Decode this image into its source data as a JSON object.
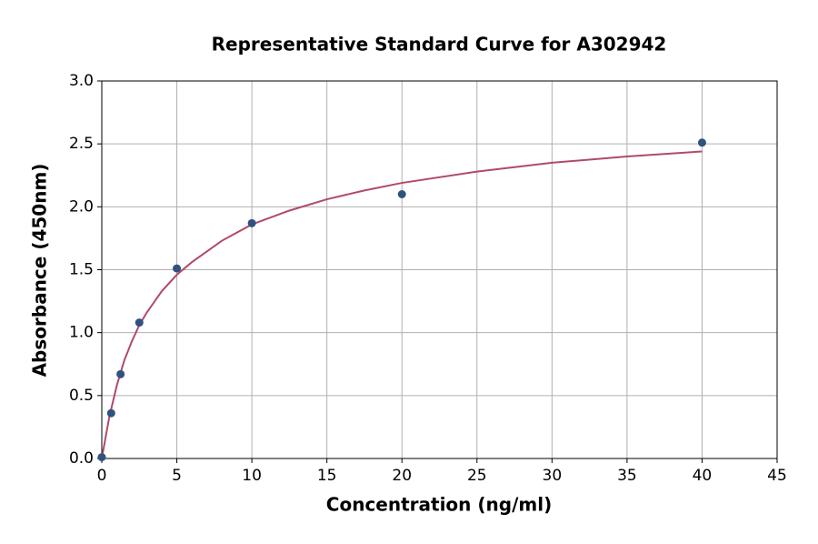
{
  "chart_data": {
    "type": "scatter",
    "title": "Representative Standard Curve for A302942",
    "x_label": "Concentration (ng/ml)",
    "y_label": "Absorbance (450nm)",
    "xlim": [
      0,
      45
    ],
    "ylim": [
      0,
      3
    ],
    "xticks": [
      0,
      5,
      10,
      15,
      20,
      25,
      30,
      35,
      40,
      45
    ],
    "yticks": [
      {
        "value": 0,
        "label": "0.0"
      },
      0.5,
      {
        "value": 1,
        "label": "1.0"
      },
      1.5,
      {
        "value": 2,
        "label": "2.0"
      },
      2.5,
      {
        "value": 3,
        "label": "3.0"
      }
    ],
    "grid": true,
    "series": [
      {
        "kind": "points",
        "color": "#2f5280",
        "x": [
          0,
          0.625,
          1.25,
          2.5,
          5,
          10,
          20,
          40
        ],
        "values": [
          0.01,
          0.36,
          0.67,
          1.08,
          1.51,
          1.87,
          2.1,
          2.51
        ]
      },
      {
        "kind": "line",
        "color": "#b04a6a",
        "x": [
          0,
          0.5,
          1,
          1.5,
          2,
          2.5,
          3,
          4,
          5,
          6,
          8,
          10,
          12.5,
          15,
          17.5,
          20,
          25,
          30,
          35,
          40
        ],
        "values": [
          0,
          0.33,
          0.58,
          0.78,
          0.93,
          1.06,
          1.16,
          1.33,
          1.46,
          1.56,
          1.73,
          1.86,
          1.97,
          2.06,
          2.13,
          2.19,
          2.28,
          2.35,
          2.4,
          2.44
        ]
      }
    ]
  }
}
